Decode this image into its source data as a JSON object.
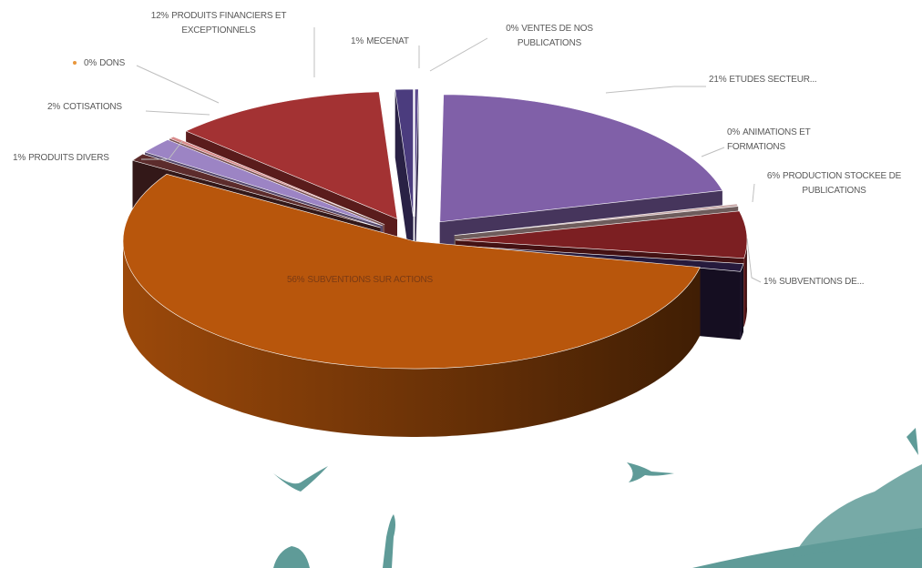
{
  "chart_data": {
    "type": "pie",
    "three_d": true,
    "categories": [
      "VENTES DE NOS PUBLICATIONS",
      "ETUDES SECTEUR...",
      "ANIMATIONS ET FORMATIONS",
      "PRODUCTION STOCKEE DE PUBLICATIONS",
      "SUBVENTIONS DE...",
      "SUBVENTIONS SUR ACTIONS",
      "PRODUITS DIVERS",
      "COTISATIONS",
      "DONS",
      "PRODUITS FINANCIERS ET EXCEPTIONNELS",
      "MECENAT"
    ],
    "values": [
      0.2,
      21,
      0.3,
      6,
      1,
      56,
      1,
      2,
      0.3,
      12,
      1
    ],
    "value_labels": [
      "0%",
      "21%",
      "0%",
      "6%",
      "1%",
      "56%",
      "1%",
      "2%",
      "0%",
      "12%",
      "1%"
    ],
    "colors": [
      "#5d4b8e",
      "#8060a8",
      "#c8a8a8",
      "#7c1f22",
      "#261a3c",
      "#b8560c",
      "#5c2c2c",
      "#9c84c4",
      "#d88a8a",
      "#a33233",
      "#4b3c7e"
    ]
  }
}
